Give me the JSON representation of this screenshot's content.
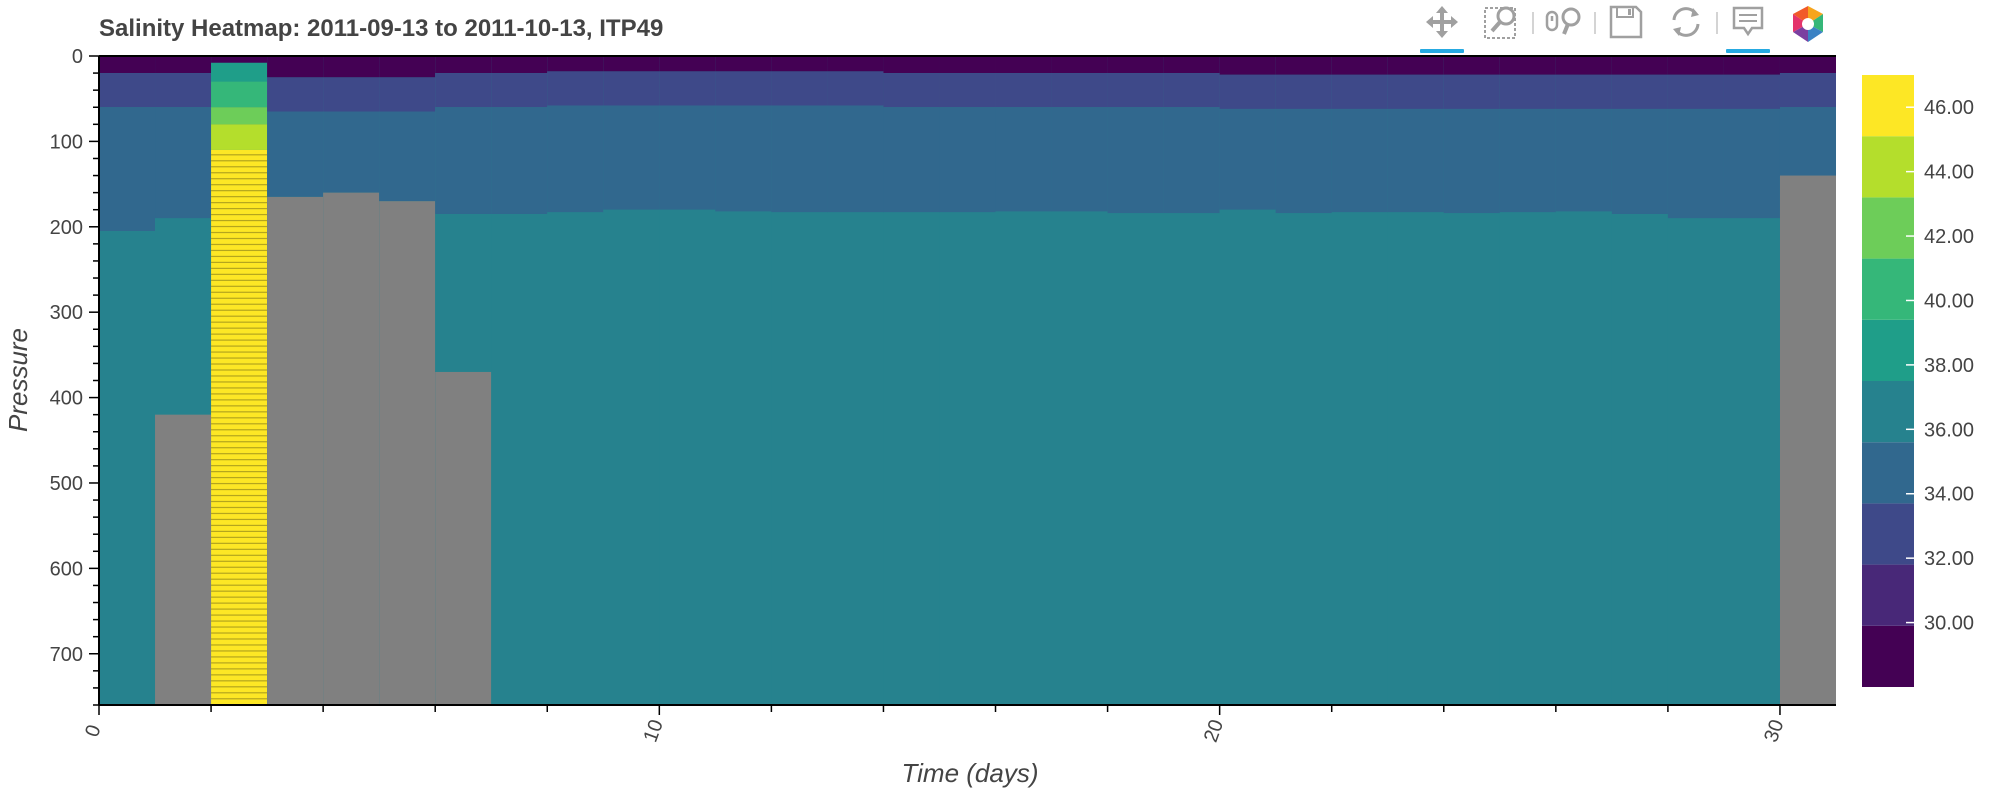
{
  "toolbar": {
    "tools": [
      {
        "name": "pan-tool",
        "icon": "pan-icon",
        "active": true
      },
      {
        "name": "box-zoom-tool",
        "icon": "box-zoom-icon",
        "active": false
      },
      {
        "name": "wheel-zoom-tool",
        "icon": "wheel-zoom-icon",
        "active": false
      },
      {
        "name": "save-tool",
        "icon": "save-icon",
        "active": false
      },
      {
        "name": "reset-tool",
        "icon": "reset-icon",
        "active": false
      },
      {
        "name": "hover-tool",
        "icon": "hover-icon",
        "active": true
      },
      {
        "name": "bokeh-logo",
        "icon": "bokeh-logo-icon",
        "active": false
      }
    ]
  },
  "chart_data": {
    "type": "heatmap",
    "title": "Salinity Heatmap: 2011-09-13 to 2011-10-13, ITP49",
    "xlabel": "Time (days)",
    "ylabel": "Pressure",
    "xlim": [
      0,
      31
    ],
    "ylim": [
      0,
      760
    ],
    "y_inverted": true,
    "grid": false,
    "x_ticks": [
      0,
      10,
      20,
      30
    ],
    "x_tick_labels": [
      "0",
      "10",
      "20",
      "30"
    ],
    "x_tick_label_rotation": -70,
    "y_ticks": [
      0,
      100,
      200,
      300,
      400,
      500,
      600,
      700
    ],
    "y_tick_labels": [
      "0",
      "100",
      "200",
      "300",
      "400",
      "500",
      "600",
      "700"
    ],
    "colorbar": {
      "palette": [
        "#440154",
        "#482878",
        "#3E4989",
        "#31688E",
        "#26828E",
        "#1F9E89",
        "#35B779",
        "#6DCD59",
        "#B4DE2C",
        "#FDE725"
      ],
      "low": 28,
      "high": 47,
      "ticks": [
        30,
        32,
        34,
        36,
        38,
        40,
        42,
        44,
        46
      ],
      "tick_labels": [
        "30.00",
        "32.00",
        "34.00",
        "36.00",
        "38.00",
        "40.00",
        "42.00",
        "44.00",
        "46.00"
      ]
    },
    "nan_color": "#808080",
    "time_bins": [
      {
        "t0": 0,
        "t1": 1,
        "mixed_layer": 20,
        "halocline_base": 205,
        "nan_from": null
      },
      {
        "t0": 1,
        "t1": 2,
        "mixed_layer": 20,
        "halocline_base": 190,
        "nan_from": 420
      },
      {
        "t0": 2,
        "t1": 3,
        "mixed_layer": 0,
        "halocline_base": 0,
        "nan_from": null,
        "anomalous": true
      },
      {
        "t0": 3,
        "t1": 4,
        "mixed_layer": 25,
        "halocline_base": 165,
        "nan_from": 165
      },
      {
        "t0": 4,
        "t1": 5,
        "mixed_layer": 25,
        "halocline_base": 160,
        "nan_from": 160
      },
      {
        "t0": 5,
        "t1": 6,
        "mixed_layer": 25,
        "halocline_base": 170,
        "nan_from": 170
      },
      {
        "t0": 6,
        "t1": 7,
        "mixed_layer": 20,
        "halocline_base": 185,
        "nan_from": 370
      },
      {
        "t0": 7,
        "t1": 8,
        "mixed_layer": 20,
        "halocline_base": 185,
        "nan_from": null
      },
      {
        "t0": 8,
        "t1": 9,
        "mixed_layer": 18,
        "halocline_base": 183,
        "nan_from": null
      },
      {
        "t0": 9,
        "t1": 10,
        "mixed_layer": 18,
        "halocline_base": 180,
        "nan_from": null
      },
      {
        "t0": 10,
        "t1": 11,
        "mixed_layer": 18,
        "halocline_base": 180,
        "nan_from": null
      },
      {
        "t0": 11,
        "t1": 12,
        "mixed_layer": 18,
        "halocline_base": 182,
        "nan_from": null
      },
      {
        "t0": 12,
        "t1": 13,
        "mixed_layer": 18,
        "halocline_base": 183,
        "nan_from": null
      },
      {
        "t0": 13,
        "t1": 14,
        "mixed_layer": 18,
        "halocline_base": 183,
        "nan_from": null
      },
      {
        "t0": 14,
        "t1": 15,
        "mixed_layer": 20,
        "halocline_base": 183,
        "nan_from": null
      },
      {
        "t0": 15,
        "t1": 16,
        "mixed_layer": 20,
        "halocline_base": 183,
        "nan_from": null
      },
      {
        "t0": 16,
        "t1": 17,
        "mixed_layer": 20,
        "halocline_base": 182,
        "nan_from": null
      },
      {
        "t0": 17,
        "t1": 18,
        "mixed_layer": 20,
        "halocline_base": 182,
        "nan_from": null
      },
      {
        "t0": 18,
        "t1": 19,
        "mixed_layer": 20,
        "halocline_base": 184,
        "nan_from": null
      },
      {
        "t0": 19,
        "t1": 20,
        "mixed_layer": 20,
        "halocline_base": 184,
        "nan_from": null
      },
      {
        "t0": 20,
        "t1": 21,
        "mixed_layer": 22,
        "halocline_base": 180,
        "nan_from": null
      },
      {
        "t0": 21,
        "t1": 22,
        "mixed_layer": 22,
        "halocline_base": 184,
        "nan_from": null
      },
      {
        "t0": 22,
        "t1": 23,
        "mixed_layer": 22,
        "halocline_base": 183,
        "nan_from": null
      },
      {
        "t0": 23,
        "t1": 24,
        "mixed_layer": 22,
        "halocline_base": 183,
        "nan_from": null
      },
      {
        "t0": 24,
        "t1": 25,
        "mixed_layer": 22,
        "halocline_base": 184,
        "nan_from": null
      },
      {
        "t0": 25,
        "t1": 26,
        "mixed_layer": 22,
        "halocline_base": 183,
        "nan_from": null
      },
      {
        "t0": 26,
        "t1": 27,
        "mixed_layer": 22,
        "halocline_base": 182,
        "nan_from": null
      },
      {
        "t0": 27,
        "t1": 28,
        "mixed_layer": 22,
        "halocline_base": 185,
        "nan_from": null
      },
      {
        "t0": 28,
        "t1": 29,
        "mixed_layer": 22,
        "halocline_base": 190,
        "nan_from": null
      },
      {
        "t0": 29,
        "t1": 30,
        "mixed_layer": 22,
        "halocline_base": 190,
        "nan_from": null
      },
      {
        "t0": 30,
        "t1": 31,
        "mixed_layer": 20,
        "halocline_base": 140,
        "nan_from": 140
      }
    ]
  }
}
